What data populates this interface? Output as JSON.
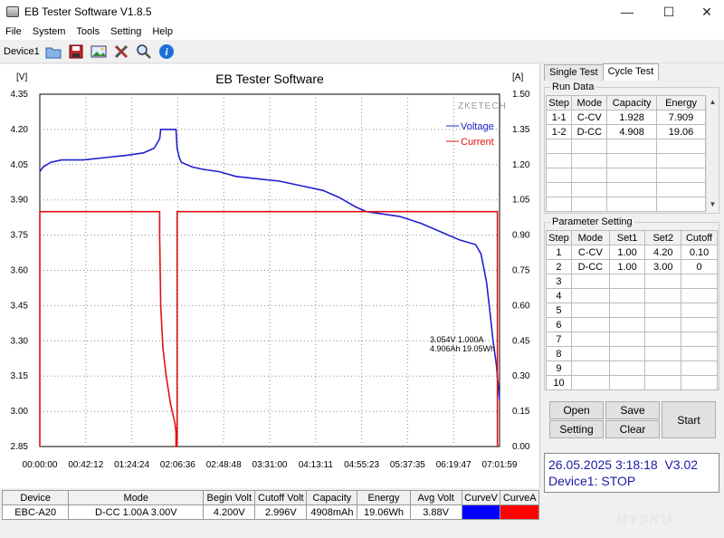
{
  "window": {
    "title": "EB Tester Software V1.8.5",
    "minimize": "—",
    "maximize": "☐",
    "close": "✕"
  },
  "menu": [
    "File",
    "System",
    "Tools",
    "Setting",
    "Help"
  ],
  "toolbar": {
    "device": "Device1",
    "icons": [
      "folder-open-icon",
      "save-disk-icon",
      "picture-icon",
      "tools-icon",
      "zoom-icon",
      "info-icon"
    ]
  },
  "chart": {
    "title": "EB Tester Software",
    "left_unit": "[V]",
    "right_unit": "[A]",
    "brand": "ZKETECH",
    "cursor_line1": "3.054V   1.000A",
    "cursor_line2": "4.906Ah 19.05Wh",
    "voltage_color": "#2020d0",
    "current_color": "#e01010"
  },
  "chart_data": {
    "type": "line",
    "title": "EB Tester Software",
    "y_left": {
      "label": "[V]",
      "ticks": [
        "4.35",
        "4.20",
        "4.05",
        "3.90",
        "3.75",
        "3.60",
        "3.45",
        "3.30",
        "3.15",
        "3.00",
        "2.85"
      ],
      "range": [
        2.85,
        4.35
      ]
    },
    "y_right": {
      "label": "[A]",
      "ticks": [
        "1.50",
        "1.35",
        "1.20",
        "1.05",
        "0.90",
        "0.75",
        "0.60",
        "0.45",
        "0.30",
        "0.15",
        "0.00"
      ],
      "range": [
        0,
        1.5
      ]
    },
    "x": {
      "ticks": [
        "00:00:00",
        "00:42:12",
        "01:24:24",
        "02:06:36",
        "02:48:48",
        "03:31:00",
        "04:13:11",
        "04:55:23",
        "05:37:35",
        "06:19:47",
        "07:01:59"
      ],
      "range_min": [
        0,
        422
      ]
    },
    "series": [
      {
        "name": "Voltage",
        "axis": "left",
        "color": "#2020d0",
        "x": [
          0,
          3,
          10,
          20,
          40,
          60,
          80,
          95,
          105,
          110,
          111,
          125,
          126,
          128,
          130,
          135,
          140,
          150,
          165,
          180,
          200,
          220,
          240,
          260,
          275,
          290,
          300,
          315,
          330,
          350,
          370,
          385,
          400,
          405,
          410,
          413,
          416,
          419,
          421,
          422
        ],
        "y": [
          4.02,
          4.04,
          4.06,
          4.07,
          4.07,
          4.08,
          4.09,
          4.1,
          4.12,
          4.16,
          4.2,
          4.2,
          4.12,
          4.08,
          4.06,
          4.05,
          4.04,
          4.03,
          4.02,
          4.0,
          3.99,
          3.98,
          3.96,
          3.94,
          3.91,
          3.87,
          3.85,
          3.84,
          3.83,
          3.8,
          3.76,
          3.73,
          3.71,
          3.67,
          3.55,
          3.43,
          3.3,
          3.2,
          3.1,
          3.05
        ]
      },
      {
        "name": "Current",
        "axis": "right",
        "color": "#e01010",
        "x": [
          0,
          0,
          110,
          110,
          111,
          113,
          116,
          120,
          124,
          125,
          125,
          126,
          126,
          420,
          420
        ],
        "y": [
          0,
          1.0,
          1.0,
          0.9,
          0.6,
          0.42,
          0.3,
          0.18,
          0.1,
          0.06,
          0.0,
          0.0,
          1.0,
          1.0,
          0.0
        ]
      }
    ]
  },
  "bottom_table": {
    "headers": [
      "Device",
      "Mode",
      "Begin Volt",
      "Cutoff Volt",
      "Capacity",
      "Energy",
      "Avg Volt",
      "CurveV",
      "CurveA"
    ],
    "row": [
      "EBC-A20",
      "D-CC  1.00A  3.00V",
      "4.200V",
      "2.996V",
      "4908mAh",
      "19.06Wh",
      "3.88V"
    ],
    "curve_v_color": "#0000ff",
    "curve_a_color": "#ff0000"
  },
  "right_panel": {
    "tabs": [
      "Single Test",
      "Cycle Test"
    ],
    "run_data": {
      "title": "Run Data",
      "headers": [
        "Step",
        "Mode",
        "Capacity",
        "Energy"
      ],
      "rows": [
        [
          "1-1",
          "C-CV",
          "1.928",
          "7.909"
        ],
        [
          "1-2",
          "D-CC",
          "4.908",
          "19.06"
        ]
      ]
    },
    "param": {
      "title": "Parameter Setting",
      "headers": [
        "Step",
        "Mode",
        "Set1",
        "Set2",
        "Cutoff"
      ],
      "rows": [
        [
          "1",
          "C-CV",
          "1.00",
          "4.20",
          "0.10"
        ],
        [
          "2",
          "D-CC",
          "1.00",
          "3.00",
          "0"
        ],
        [
          "3",
          "",
          "",
          "",
          ""
        ],
        [
          "4",
          "",
          "",
          "",
          ""
        ],
        [
          "5",
          "",
          "",
          "",
          ""
        ],
        [
          "6",
          "",
          "",
          "",
          ""
        ],
        [
          "7",
          "",
          "",
          "",
          ""
        ],
        [
          "8",
          "",
          "",
          "",
          ""
        ],
        [
          "9",
          "",
          "",
          "",
          ""
        ],
        [
          "10",
          "",
          "",
          "",
          ""
        ]
      ]
    },
    "buttons": {
      "open": "Open",
      "save": "Save",
      "setting": "Setting",
      "clear": "Clear",
      "start": "Start"
    },
    "status": {
      "datetime": "26.05.2025 3:18:18",
      "version": "V3.02",
      "device_status": "Device1: STOP"
    }
  },
  "watermark": "MYSKU"
}
